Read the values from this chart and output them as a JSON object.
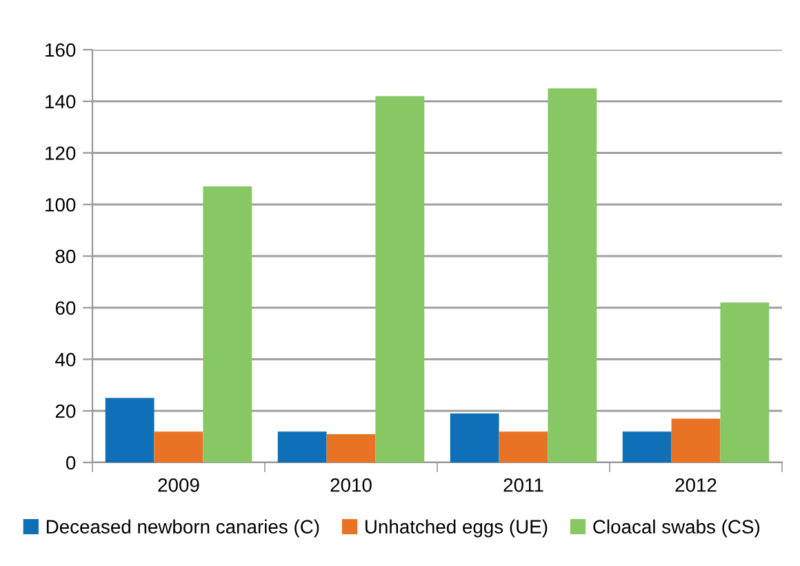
{
  "chart_data": {
    "type": "bar",
    "categories": [
      "2009",
      "2010",
      "2011",
      "2012"
    ],
    "series": [
      {
        "name": "Deceased newborn canaries (C)",
        "color": "#0f70b7",
        "values": [
          25,
          12,
          19,
          12
        ]
      },
      {
        "name": "Unhatched eggs (UE)",
        "color": "#e87324",
        "values": [
          12,
          11,
          12,
          17
        ]
      },
      {
        "name": "Cloacal swabs (CS)",
        "color": "#87c764",
        "values": [
          107,
          142,
          145,
          62
        ]
      }
    ],
    "ylim": [
      0,
      160
    ],
    "yticks": [
      0,
      20,
      40,
      60,
      80,
      100,
      120,
      140,
      160
    ],
    "grid": "y",
    "legend": "bottom"
  }
}
